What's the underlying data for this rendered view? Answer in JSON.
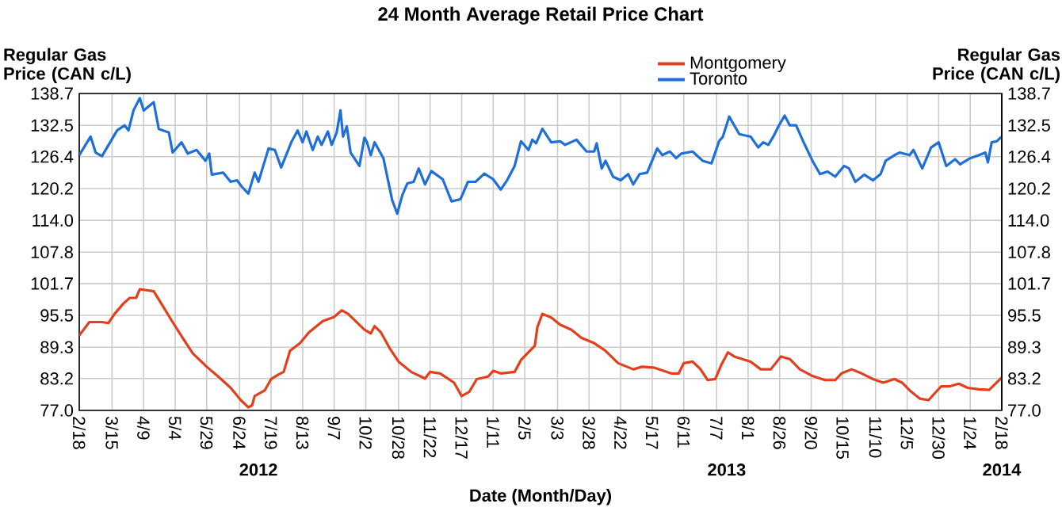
{
  "chart_data": {
    "type": "line",
    "title": "24 Month Average Retail Price Chart",
    "ylabel": "Regular Gas Price (CAN c/L)",
    "y2label": "Regular Gas Price (CAN c/L)",
    "xlabel": "Date (Month/Day)",
    "xlim": [
      "2012-02-18",
      "2014-02-18"
    ],
    "xticks": [
      {
        "value": "2012-02-18",
        "label": "2/18"
      },
      {
        "value": "2012-03-15",
        "label": "3/15"
      },
      {
        "value": "2012-04-09",
        "label": "4/9"
      },
      {
        "value": "2012-05-04",
        "label": "5/4"
      },
      {
        "value": "2012-05-29",
        "label": "5/29"
      },
      {
        "value": "2012-06-24",
        "label": "6/24"
      },
      {
        "value": "2012-07-19",
        "label": "7/19"
      },
      {
        "value": "2012-08-13",
        "label": "8/13"
      },
      {
        "value": "2012-09-07",
        "label": "9/7"
      },
      {
        "value": "2012-10-02",
        "label": "10/2"
      },
      {
        "value": "2012-10-28",
        "label": "10/28"
      },
      {
        "value": "2012-11-22",
        "label": "11/22"
      },
      {
        "value": "2012-12-17",
        "label": "12/17"
      },
      {
        "value": "2013-01-11",
        "label": "1/11"
      },
      {
        "value": "2013-02-05",
        "label": "2/5"
      },
      {
        "value": "2013-03-03",
        "label": "3/3"
      },
      {
        "value": "2013-03-28",
        "label": "3/28"
      },
      {
        "value": "2013-04-22",
        "label": "4/22"
      },
      {
        "value": "2013-05-17",
        "label": "5/17"
      },
      {
        "value": "2013-06-11",
        "label": "6/11"
      },
      {
        "value": "2013-07-07",
        "label": "7/7"
      },
      {
        "value": "2013-08-01",
        "label": "8/1"
      },
      {
        "value": "2013-08-26",
        "label": "8/26"
      },
      {
        "value": "2013-09-20",
        "label": "9/20"
      },
      {
        "value": "2013-10-15",
        "label": "10/15"
      },
      {
        "value": "2013-11-10",
        "label": "11/10"
      },
      {
        "value": "2013-12-05",
        "label": "12/5"
      },
      {
        "value": "2013-12-30",
        "label": "12/30"
      },
      {
        "value": "2014-01-24",
        "label": "1/24"
      },
      {
        "value": "2014-02-18",
        "label": "2/18"
      }
    ],
    "x2lim": [
      "2012-02-18",
      "2014-02-18"
    ],
    "x2ticks": [
      {
        "value": "2012-07-09",
        "label": "2012"
      },
      {
        "value": "2013-07-15",
        "label": "2013"
      },
      {
        "value": "2014-02-18",
        "label": "2014"
      }
    ],
    "ylim": [
      77.0,
      138.7
    ],
    "yticks": [
      {
        "value": 77,
        "label": "77.0"
      },
      83.2,
      89.3,
      95.5,
      101.7,
      107.8,
      {
        "value": 114,
        "label": "114.0"
      },
      120.2,
      126.4,
      132.5,
      138.7
    ],
    "y2lim": [
      77.0,
      138.7
    ],
    "y2ticks": [
      {
        "value": 77,
        "label": "77.0"
      },
      83.2,
      89.3,
      95.5,
      101.7,
      107.8,
      {
        "value": 114,
        "label": "114.0"
      },
      120.2,
      126.4,
      132.5,
      138.7
    ],
    "grid": true,
    "legend": "top right",
    "series": [
      {
        "name": "Montgomery",
        "color": "#e2401c",
        "x": [
          "2012-02-18",
          "2012-02-26",
          "2012-03-07",
          "2012-03-12",
          "2012-03-17",
          "2012-03-24",
          "2012-03-29",
          "2012-04-03",
          "2012-04-06",
          "2012-04-17",
          "2012-04-23",
          "2012-05-02",
          "2012-05-10",
          "2012-05-18",
          "2012-05-29",
          "2012-06-08",
          "2012-06-17",
          "2012-06-25",
          "2012-07-01",
          "2012-07-04",
          "2012-07-06",
          "2012-07-14",
          "2012-07-19",
          "2012-07-25",
          "2012-07-29",
          "2012-08-03",
          "2012-08-11",
          "2012-08-18",
          "2012-08-29",
          "2012-09-07",
          "2012-09-13",
          "2012-09-18",
          "2012-10-01",
          "2012-10-06",
          "2012-10-09",
          "2012-10-14",
          "2012-10-21",
          "2012-10-28",
          "2012-11-07",
          "2012-11-18",
          "2012-11-22",
          "2012-11-30",
          "2012-12-11",
          "2012-12-17",
          "2012-12-23",
          "2012-12-29",
          "2013-01-07",
          "2013-01-11",
          "2013-01-17",
          "2013-01-28",
          "2013-02-02",
          "2013-02-09",
          "2013-02-13",
          "2013-02-15",
          "2013-02-19",
          "2013-02-26",
          "2013-03-05",
          "2013-03-14",
          "2013-03-22",
          "2013-04-01",
          "2013-04-10",
          "2013-04-20",
          "2013-05-02",
          "2013-05-09",
          "2013-05-19",
          "2013-06-01",
          "2013-06-07",
          "2013-06-11",
          "2013-06-18",
          "2013-06-24",
          "2013-06-30",
          "2013-07-06",
          "2013-07-11",
          "2013-07-16",
          "2013-07-21",
          "2013-08-03",
          "2013-08-11",
          "2013-08-19",
          "2013-08-27",
          "2013-09-03",
          "2013-09-11",
          "2013-09-21",
          "2013-10-01",
          "2013-10-09",
          "2013-10-14",
          "2013-10-22",
          "2013-10-30",
          "2013-11-08",
          "2013-11-16",
          "2013-11-25",
          "2013-12-01",
          "2013-12-07",
          "2013-12-15",
          "2013-12-22",
          "2014-01-01",
          "2014-01-08",
          "2014-01-15",
          "2014-01-22",
          "2014-01-31",
          "2014-02-08",
          "2014-02-18"
        ],
        "values": [
          91.6,
          94.2,
          94.2,
          94.0,
          95.8,
          97.8,
          98.9,
          98.9,
          100.6,
          100.2,
          97.8,
          94.2,
          91.1,
          88.1,
          85.5,
          83.4,
          81.4,
          79.0,
          77.6,
          78.0,
          79.8,
          80.9,
          83.1,
          84.0,
          84.5,
          88.6,
          90.1,
          92.2,
          94.4,
          95.2,
          96.5,
          95.8,
          92.7,
          92.0,
          93.4,
          92.2,
          89.1,
          86.5,
          84.5,
          83.2,
          84.5,
          84.2,
          82.4,
          79.8,
          80.6,
          83.1,
          83.6,
          84.7,
          84.2,
          84.5,
          86.8,
          88.6,
          89.6,
          93.2,
          95.8,
          95.1,
          93.7,
          92.7,
          91.1,
          90.1,
          88.6,
          86.2,
          85.0,
          85.5,
          85.3,
          84.2,
          84.2,
          86.2,
          86.5,
          85.1,
          82.9,
          83.1,
          86.0,
          88.3,
          87.5,
          86.5,
          85.0,
          85.0,
          87.5,
          87.0,
          85.0,
          83.7,
          82.9,
          82.9,
          84.2,
          85.0,
          84.2,
          83.1,
          82.4,
          83.1,
          82.4,
          80.9,
          79.3,
          79.0,
          81.7,
          81.7,
          82.2,
          81.4,
          81.1,
          81.0,
          83.4
        ]
      },
      {
        "name": "Toronto",
        "color": "#1e6fd9",
        "x": [
          "2012-02-18",
          "2012-02-27",
          "2012-03-02",
          "2012-03-07",
          "2012-03-19",
          "2012-03-25",
          "2012-03-28",
          "2012-04-01",
          "2012-04-06",
          "2012-04-09",
          "2012-04-17",
          "2012-04-21",
          "2012-04-29",
          "2012-05-02",
          "2012-05-09",
          "2012-05-14",
          "2012-05-21",
          "2012-05-28",
          "2012-05-31",
          "2012-06-02",
          "2012-06-11",
          "2012-06-17",
          "2012-06-22",
          "2012-06-26",
          "2012-07-01",
          "2012-07-06",
          "2012-07-09",
          "2012-07-17",
          "2012-07-22",
          "2012-07-27",
          "2012-08-04",
          "2012-08-09",
          "2012-08-13",
          "2012-08-16",
          "2012-08-21",
          "2012-08-25",
          "2012-08-28",
          "2012-09-02",
          "2012-09-05",
          "2012-09-09",
          "2012-09-12",
          "2012-09-14",
          "2012-09-17",
          "2012-09-20",
          "2012-09-27",
          "2012-10-01",
          "2012-10-03",
          "2012-10-06",
          "2012-10-09",
          "2012-10-16",
          "2012-10-23",
          "2012-10-27",
          "2012-10-31",
          "2012-11-04",
          "2012-11-09",
          "2012-11-13",
          "2012-11-18",
          "2012-11-23",
          "2012-12-02",
          "2012-12-09",
          "2012-12-16",
          "2012-12-22",
          "2012-12-28",
          "2013-01-04",
          "2013-01-11",
          "2013-01-17",
          "2013-01-22",
          "2013-01-28",
          "2013-02-02",
          "2013-02-08",
          "2013-02-11",
          "2013-02-14",
          "2013-02-19",
          "2013-02-26",
          "2013-03-05",
          "2013-03-09",
          "2013-03-18",
          "2013-03-26",
          "2013-04-01",
          "2013-04-03",
          "2013-04-07",
          "2013-04-10",
          "2013-04-16",
          "2013-04-22",
          "2013-04-28",
          "2013-05-02",
          "2013-05-07",
          "2013-05-13",
          "2013-05-21",
          "2013-05-25",
          "2013-05-31",
          "2013-06-05",
          "2013-06-09",
          "2013-06-18",
          "2013-06-26",
          "2013-07-03",
          "2013-07-09",
          "2013-07-12",
          "2013-07-17",
          "2013-07-25",
          "2013-08-03",
          "2013-08-09",
          "2013-08-13",
          "2013-08-17",
          "2013-08-21",
          "2013-08-25",
          "2013-08-30",
          "2013-09-03",
          "2013-09-08",
          "2013-09-14",
          "2013-09-21",
          "2013-09-27",
          "2013-10-03",
          "2013-10-09",
          "2013-10-16",
          "2013-10-20",
          "2013-10-25",
          "2013-11-01",
          "2013-11-08",
          "2013-11-14",
          "2013-11-18",
          "2013-11-25",
          "2013-11-29",
          "2013-12-07",
          "2013-12-10",
          "2013-12-17",
          "2013-12-24",
          "2013-12-30",
          "2014-01-05",
          "2014-01-12",
          "2014-01-16",
          "2014-01-24",
          "2014-01-31",
          "2014-02-05",
          "2014-02-07",
          "2014-02-10",
          "2014-02-14",
          "2014-02-18"
        ],
        "values": [
          126.7,
          130.3,
          127.2,
          126.5,
          131.5,
          132.5,
          131.5,
          135.4,
          137.8,
          135.4,
          137.0,
          131.8,
          131.1,
          127.2,
          129.2,
          127.0,
          127.7,
          125.6,
          127.0,
          122.9,
          123.3,
          121.5,
          121.8,
          120.5,
          119.2,
          123.3,
          121.5,
          128.0,
          127.7,
          124.3,
          129.2,
          131.5,
          129.2,
          131.3,
          127.7,
          130.3,
          128.7,
          131.3,
          128.7,
          131.1,
          135.4,
          130.3,
          132.3,
          127.2,
          124.6,
          130.1,
          129.2,
          126.7,
          129.2,
          126.1,
          117.9,
          115.3,
          118.9,
          121.2,
          121.5,
          124.1,
          121.0,
          123.6,
          122.0,
          117.7,
          118.1,
          121.5,
          121.5,
          123.1,
          122.0,
          120.0,
          121.8,
          124.6,
          129.4,
          127.7,
          129.7,
          129.0,
          131.8,
          129.2,
          129.4,
          128.7,
          129.7,
          127.4,
          127.4,
          129.0,
          124.1,
          125.6,
          122.5,
          121.8,
          123.0,
          121.0,
          123.0,
          123.3,
          128.0,
          126.7,
          127.4,
          126.1,
          127.0,
          127.4,
          125.6,
          125.1,
          129.4,
          130.3,
          134.2,
          130.8,
          130.3,
          128.2,
          129.2,
          128.7,
          130.3,
          132.3,
          134.4,
          132.5,
          132.5,
          129.2,
          125.6,
          123.0,
          123.5,
          122.5,
          124.6,
          124.1,
          121.5,
          122.9,
          121.8,
          123.0,
          125.6,
          126.7,
          127.2,
          126.7,
          127.7,
          124.1,
          128.2,
          129.2,
          124.6,
          125.9,
          124.9,
          126.1,
          126.7,
          127.2,
          125.3,
          129.2,
          129.4,
          130.3
        ]
      }
    ]
  }
}
